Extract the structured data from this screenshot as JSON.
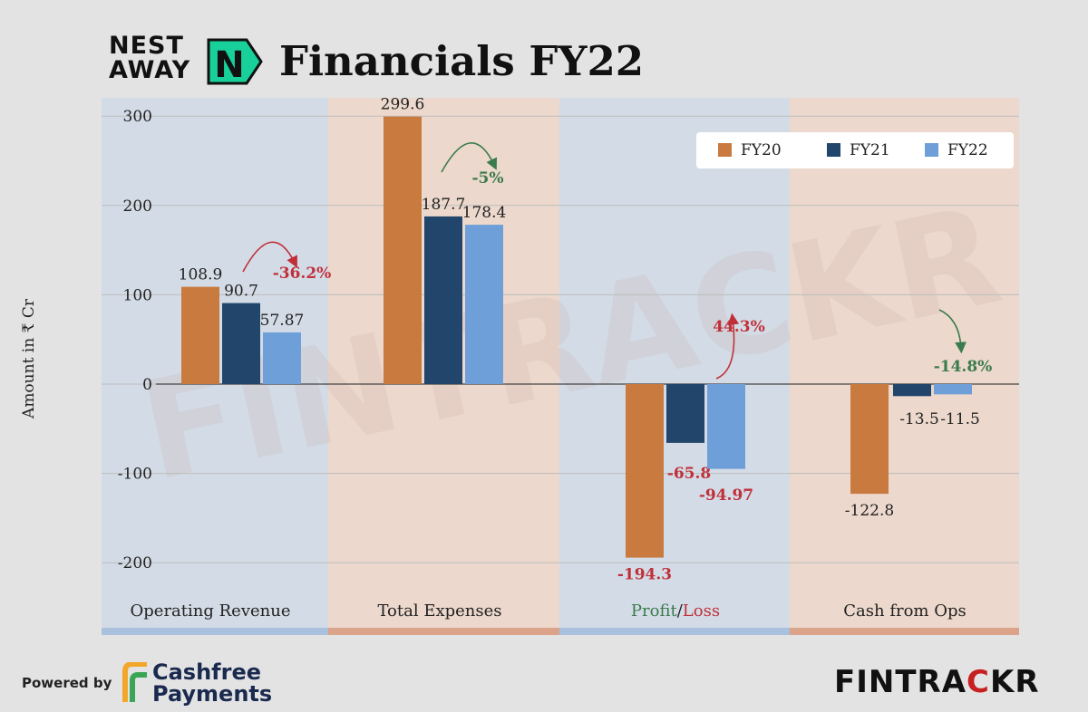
{
  "brand": {
    "logo_line1": "NEST",
    "logo_line2": "AWAY",
    "logo_mark": "N"
  },
  "title": "Financials FY22",
  "watermark": "FINTRACKR",
  "footer": {
    "powered_by": "Powered by",
    "partner_line1": "Cashfree",
    "partner_line2": "Payments",
    "brand_a": "FIN",
    "brand_b": "TRA",
    "brand_c": "C",
    "brand_d": "KR"
  },
  "colors": {
    "FY20": "#c97a3e",
    "FY21": "#22456b",
    "FY22": "#6f9fd8",
    "band_blue": "#d3dce6",
    "band_orange": "#ecd8cc",
    "negative": "#c0303a",
    "positive": "#3b7b4d"
  },
  "chart_data": {
    "type": "bar",
    "ylabel": "Amount in ₹ Cr",
    "ylim": [
      -200,
      300
    ],
    "yticks": [
      "300",
      "200",
      "100",
      "0",
      "-100",
      "-200"
    ],
    "ytick_values": [
      300,
      200,
      100,
      0,
      -100,
      -200
    ],
    "grid": true,
    "legend_position": "top-right",
    "categories": [
      "Operating Revenue",
      "Total Expenses",
      "Profit",
      "Cash from Ops"
    ],
    "category_label_profit_a": "Profit",
    "category_label_profit_sep": "/",
    "category_label_profit_b": "Loss",
    "series": [
      {
        "name": "FY20",
        "values": [
          108.9,
          299.6,
          -194.3,
          -122.8
        ],
        "labels": [
          "108.9",
          "299.6",
          "-194.3",
          "-122.8"
        ]
      },
      {
        "name": "FY21",
        "values": [
          90.7,
          187.7,
          -65.8,
          -13.5
        ],
        "labels": [
          "90.7",
          "187.7",
          "-65.8",
          "-13.5"
        ]
      },
      {
        "name": "FY22",
        "values": [
          57.87,
          178.4,
          -94.97,
          -11.5
        ],
        "labels": [
          "57.87",
          "178.4",
          "-94.97",
          "-11.5"
        ]
      }
    ],
    "annotations": [
      {
        "category": "Operating Revenue",
        "text": "-36.2%",
        "sentiment": "negative"
      },
      {
        "category": "Total Expenses",
        "text": "-5%",
        "sentiment": "positive"
      },
      {
        "category": "Profit",
        "text": "44.3%",
        "sentiment": "negative"
      },
      {
        "category": "Cash from Ops",
        "text": "-14.8%",
        "sentiment": "positive"
      }
    ]
  }
}
